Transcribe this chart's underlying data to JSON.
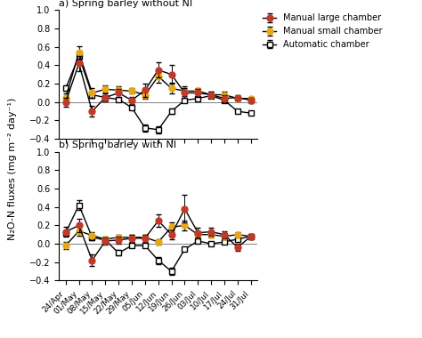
{
  "x_labels": [
    "24/Apr",
    "01/May",
    "08/May",
    "15/May",
    "22/May",
    "29/May",
    "05/Jun",
    "12/Jun",
    "19/Jun",
    "26/Jun",
    "03/Jul",
    "10/Jul",
    "17/Jul",
    "24/Jul",
    "31/Jul"
  ],
  "subplot_a": {
    "title": "a) Spring barley without NI",
    "manual_large": [
      0.0,
      0.42,
      -0.1,
      0.05,
      0.1,
      0.02,
      0.13,
      0.35,
      0.3,
      0.1,
      0.1,
      0.08,
      0.04,
      0.05,
      0.02
    ],
    "manual_large_err": [
      0.05,
      0.08,
      0.06,
      0.04,
      0.04,
      0.04,
      0.07,
      0.08,
      0.1,
      0.05,
      0.04,
      0.03,
      0.04,
      0.03,
      0.03
    ],
    "manual_small": [
      0.05,
      0.54,
      0.1,
      0.14,
      0.13,
      0.12,
      0.08,
      0.28,
      0.15,
      0.12,
      0.12,
      0.08,
      0.08,
      0.04,
      0.04
    ],
    "manual_small_err": [
      0.04,
      0.07,
      0.05,
      0.04,
      0.04,
      0.03,
      0.04,
      0.07,
      0.06,
      0.05,
      0.03,
      0.03,
      0.03,
      0.02,
      0.02
    ],
    "automatic": [
      0.15,
      0.5,
      0.08,
      0.05,
      0.03,
      -0.06,
      -0.28,
      -0.3,
      -0.1,
      0.02,
      0.04,
      0.07,
      0.02,
      -0.1,
      -0.12
    ],
    "automatic_err": [
      0.03,
      0.05,
      0.03,
      0.02,
      0.02,
      0.02,
      0.04,
      0.04,
      0.03,
      0.02,
      0.02,
      0.02,
      0.02,
      0.02,
      0.02
    ]
  },
  "subplot_b": {
    "title": "b) Spring barley with NI",
    "manual_large": [
      0.13,
      0.2,
      -0.18,
      0.03,
      0.04,
      0.06,
      0.06,
      0.25,
      0.1,
      0.38,
      0.12,
      0.13,
      0.1,
      -0.04,
      0.08
    ],
    "manual_large_err": [
      0.05,
      0.07,
      0.06,
      0.04,
      0.04,
      0.04,
      0.04,
      0.07,
      0.05,
      0.15,
      0.05,
      0.04,
      0.04,
      0.04,
      0.03
    ],
    "manual_small": [
      -0.02,
      0.14,
      0.09,
      0.05,
      0.07,
      0.07,
      0.07,
      0.02,
      0.18,
      0.2,
      0.1,
      0.1,
      0.08,
      0.1,
      0.08
    ],
    "manual_small_err": [
      0.04,
      0.05,
      0.04,
      0.03,
      0.03,
      0.03,
      0.03,
      0.03,
      0.05,
      0.05,
      0.04,
      0.03,
      0.03,
      0.03,
      0.02
    ],
    "automatic": [
      0.12,
      0.42,
      0.07,
      0.04,
      -0.1,
      -0.02,
      -0.02,
      -0.18,
      -0.3,
      -0.06,
      0.03,
      0.0,
      0.02,
      0.05,
      0.08
    ],
    "automatic_err": [
      0.03,
      0.05,
      0.03,
      0.02,
      0.03,
      0.02,
      0.02,
      0.04,
      0.04,
      0.02,
      0.02,
      0.02,
      0.02,
      0.02,
      0.02
    ]
  },
  "colors": {
    "manual_large": "#c0392b",
    "manual_small": "#e6a817",
    "automatic": "#808080"
  },
  "ylim": [
    -0.4,
    1.0
  ],
  "yticks": [
    -0.4,
    -0.2,
    0.0,
    0.2,
    0.4,
    0.6,
    0.8,
    1.0
  ],
  "ylabel": "N₂O-N fluxes (mg m⁻² day⁻¹)",
  "legend_labels": [
    "Manual large chamber",
    "Manual small chamber",
    "Automatic chamber"
  ]
}
